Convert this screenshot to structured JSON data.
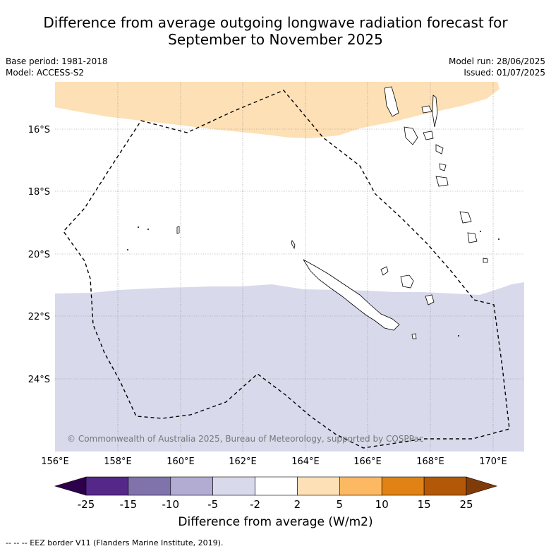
{
  "title_line1": "Difference from average outgoing longwave radiation forecast for",
  "title_line2": "September to November 2025",
  "meta": {
    "base_period": "Base period: 1981-2018",
    "model": "Model: ACCESS-S2",
    "model_run": "Model run: 28/06/2025",
    "issued": "Issued: 01/07/2025"
  },
  "map": {
    "lat_labels": [
      "16°S",
      "18°S",
      "20°S",
      "22°S",
      "24°S"
    ],
    "lon_labels": [
      "156°E",
      "158°E",
      "160°E",
      "162°E",
      "164°E",
      "166°E",
      "168°E",
      "170°E"
    ],
    "copyright": "© Commonwealth of Australia 2025, Bureau of Meteorology, supported by COSPPac"
  },
  "colorbar": {
    "title": "Difference from average (W/m2)",
    "labels": [
      "-25",
      "-15",
      "-10",
      "-5",
      "-2",
      "2",
      "5",
      "10",
      "15",
      "25"
    ],
    "colors": [
      "#2d004b",
      "#542788",
      "#8073ac",
      "#b2abd2",
      "#d8daeb",
      "#ffffff",
      "#fee0b6",
      "#fdb863",
      "#e08214",
      "#b35806",
      "#7f3b08"
    ]
  },
  "footnote": "-- -- -- EEZ border V11 (Flanders Marine Institute, 2019)."
}
